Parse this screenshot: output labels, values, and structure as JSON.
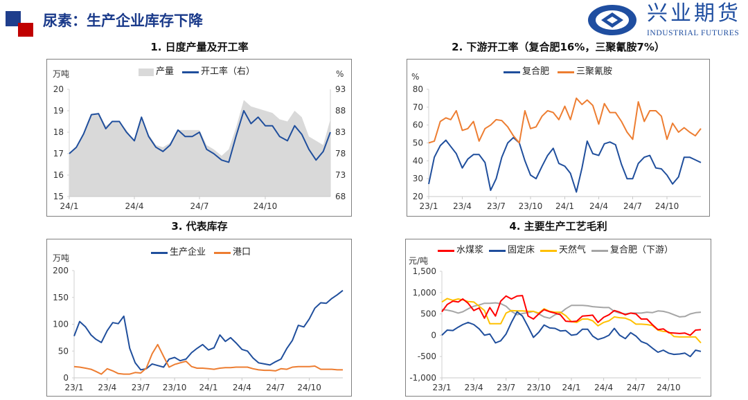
{
  "header": {
    "title": "尿素：生产企业库存下降",
    "logo_cn": "兴业期货",
    "logo_en": "INDUSTRIAL FUTURES",
    "accent_blue": "#1f3e8c",
    "accent_red": "#c00000"
  },
  "chart_data": [
    {
      "type": "line",
      "title": "1. 日度产量及开工率",
      "ylabel": "万吨",
      "y2label": "%",
      "ylim": [
        15,
        20
      ],
      "y2lim": [
        68,
        93
      ],
      "y_ticks": [
        "15",
        "16",
        "17",
        "18",
        "19",
        "20"
      ],
      "y2_ticks": [
        "68",
        "73",
        "78",
        "83",
        "88",
        "93"
      ],
      "xlim": [
        "2024-01-01",
        "2024-12-31"
      ],
      "x_ticks": [
        {
          "label": "24/1",
          "date": "2024-01-01"
        },
        {
          "label": "24/4",
          "date": "2024-04-01"
        },
        {
          "label": "24/7",
          "date": "2024-07-01"
        },
        {
          "label": "24/10",
          "date": "2024-10-01"
        }
      ],
      "legend": "top",
      "x": [
        "2024-01-01",
        "2024-01-11",
        "2024-01-21",
        "2024-02-01",
        "2024-02-11",
        "2024-02-21",
        "2024-03-01",
        "2024-03-11",
        "2024-03-21",
        "2024-04-01",
        "2024-04-11",
        "2024-04-21",
        "2024-05-01",
        "2024-05-11",
        "2024-05-21",
        "2024-06-01",
        "2024-06-11",
        "2024-06-21",
        "2024-07-01",
        "2024-07-11",
        "2024-07-21",
        "2024-08-01",
        "2024-08-11",
        "2024-08-21",
        "2024-09-01",
        "2024-09-11",
        "2024-09-21",
        "2024-10-01",
        "2024-10-11",
        "2024-10-21",
        "2024-11-01",
        "2024-11-11",
        "2024-11-21",
        "2024-12-01",
        "2024-12-11",
        "2024-12-21",
        "2024-12-31"
      ],
      "series": [
        {
          "name": "产量",
          "kind": "area",
          "axis": "left",
          "color": "#d9d9d9",
          "values": [
            17.0,
            17.3,
            17.9,
            18.8,
            18.9,
            18.3,
            18.5,
            18.5,
            18.1,
            17.6,
            18.7,
            17.9,
            17.4,
            17.3,
            17.5,
            18.1,
            18.1,
            18.1,
            18.1,
            17.4,
            17.2,
            16.9,
            17.2,
            18.2,
            19.5,
            19.2,
            19.1,
            19.0,
            18.9,
            18.6,
            18.5,
            19.0,
            18.7,
            17.8,
            17.6,
            17.4,
            18.6
          ]
        },
        {
          "name": "开工率（右）",
          "kind": "line",
          "axis": "right",
          "color": "#1f4e9c",
          "values": [
            78.0,
            79.5,
            82.6,
            87.1,
            87.3,
            83.8,
            85.5,
            85.5,
            83.0,
            81.0,
            86.5,
            82.0,
            79.5,
            78.5,
            80.0,
            83.5,
            82.0,
            82.0,
            83.0,
            79.0,
            78.0,
            76.5,
            76.0,
            82.0,
            88.0,
            85.0,
            86.5,
            84.5,
            84.5,
            82.0,
            81.0,
            84.5,
            82.5,
            79.0,
            76.5,
            78.5,
            83.0
          ]
        }
      ]
    },
    {
      "type": "line",
      "title": "2. 下游开工率（复合肥16%，三聚氰胺7%）",
      "ylabel": "%",
      "ylim": [
        20,
        80
      ],
      "y_ticks": [
        "20",
        "30",
        "40",
        "50",
        "60",
        "70",
        "80"
      ],
      "xlim": [
        "2023-01-01",
        "2024-12-31"
      ],
      "x_ticks": [
        {
          "label": "23/1",
          "date": "2023-01-01"
        },
        {
          "label": "23/4",
          "date": "2023-04-01"
        },
        {
          "label": "23/7",
          "date": "2023-07-01"
        },
        {
          "label": "23/10",
          "date": "2023-10-01"
        },
        {
          "label": "24/1",
          "date": "2024-01-01"
        },
        {
          "label": "24/4",
          "date": "2024-04-01"
        },
        {
          "label": "24/7",
          "date": "2024-07-01"
        },
        {
          "label": "24/10",
          "date": "2024-10-01"
        }
      ],
      "legend": "top",
      "x": [
        "2023-01-01",
        "2023-01-16",
        "2023-02-01",
        "2023-02-16",
        "2023-03-01",
        "2023-03-16",
        "2023-04-01",
        "2023-04-16",
        "2023-05-01",
        "2023-05-16",
        "2023-06-01",
        "2023-06-16",
        "2023-07-01",
        "2023-07-16",
        "2023-08-01",
        "2023-08-16",
        "2023-09-01",
        "2023-09-16",
        "2023-10-01",
        "2023-10-16",
        "2023-11-01",
        "2023-11-16",
        "2023-12-01",
        "2023-12-16",
        "2024-01-01",
        "2024-01-16",
        "2024-02-01",
        "2024-02-16",
        "2024-03-01",
        "2024-03-16",
        "2024-04-01",
        "2024-04-16",
        "2024-05-01",
        "2024-05-16",
        "2024-06-01",
        "2024-06-16",
        "2024-07-01",
        "2024-07-16",
        "2024-08-01",
        "2024-08-16",
        "2024-09-01",
        "2024-09-16",
        "2024-10-01",
        "2024-10-16",
        "2024-11-01",
        "2024-11-16",
        "2024-12-01",
        "2024-12-16",
        "2024-12-31"
      ],
      "series": [
        {
          "name": "复合肥",
          "color": "#1f4e9c",
          "values": [
            27,
            42,
            48.5,
            51.5,
            48,
            44,
            36,
            41,
            43.5,
            43.5,
            39,
            23.5,
            30,
            42,
            50,
            53,
            50,
            40,
            32,
            30,
            37,
            43,
            47,
            38.5,
            37,
            33,
            22.5,
            36,
            51,
            44,
            43,
            49.5,
            50.5,
            49,
            38,
            30,
            30,
            38.5,
            42,
            43,
            36,
            35.5,
            32,
            27,
            31,
            42,
            42,
            40.5,
            39
          ]
        },
        {
          "name": "三聚氰胺",
          "color": "#ed7d31",
          "values": [
            50,
            51,
            62,
            64,
            63,
            68,
            57,
            58,
            62,
            51,
            58,
            60,
            63,
            62.5,
            59,
            54,
            50,
            68,
            58,
            59,
            65,
            68,
            67,
            63,
            70.5,
            63,
            75,
            71.5,
            74,
            71,
            60.5,
            72,
            67,
            67,
            62,
            56,
            52,
            73,
            62,
            68,
            68,
            65,
            52,
            61,
            56,
            58.5,
            56,
            54,
            58
          ]
        }
      ]
    },
    {
      "type": "line",
      "title": "3. 代表库存",
      "ylabel": "万吨",
      "ylim": [
        0,
        200
      ],
      "y_ticks": [
        "0",
        "50",
        "100",
        "150",
        "200"
      ],
      "xlim": [
        "2023-01-01",
        "2024-12-31"
      ],
      "x_ticks": [
        {
          "label": "23/1",
          "date": "2023-01-01"
        },
        {
          "label": "23/4",
          "date": "2023-04-01"
        },
        {
          "label": "23/7",
          "date": "2023-07-01"
        },
        {
          "label": "23/10",
          "date": "2023-10-01"
        },
        {
          "label": "24/1",
          "date": "2024-01-01"
        },
        {
          "label": "24/4",
          "date": "2024-04-01"
        },
        {
          "label": "24/7",
          "date": "2024-07-01"
        },
        {
          "label": "24/10",
          "date": "2024-10-01"
        }
      ],
      "legend": "top",
      "x": [
        "2023-01-01",
        "2023-01-16",
        "2023-02-01",
        "2023-02-16",
        "2023-03-01",
        "2023-03-16",
        "2023-04-01",
        "2023-04-16",
        "2023-05-01",
        "2023-05-16",
        "2023-06-01",
        "2023-06-16",
        "2023-07-01",
        "2023-07-16",
        "2023-08-01",
        "2023-08-16",
        "2023-09-01",
        "2023-09-16",
        "2023-10-01",
        "2023-10-16",
        "2023-11-01",
        "2023-11-16",
        "2023-12-01",
        "2023-12-16",
        "2024-01-01",
        "2024-01-16",
        "2024-02-01",
        "2024-02-16",
        "2024-03-01",
        "2024-03-16",
        "2024-04-01",
        "2024-04-16",
        "2024-05-01",
        "2024-05-16",
        "2024-06-01",
        "2024-06-16",
        "2024-07-01",
        "2024-07-16",
        "2024-08-01",
        "2024-08-16",
        "2024-09-01",
        "2024-09-16",
        "2024-10-01",
        "2024-10-16",
        "2024-11-01",
        "2024-11-16",
        "2024-12-01",
        "2024-12-16",
        "2024-12-31"
      ],
      "series": [
        {
          "name": "生产企业",
          "color": "#1f4e9c",
          "values": [
            78,
            105,
            95,
            80,
            72,
            66,
            88,
            103,
            101,
            115,
            55,
            28,
            15,
            17,
            26,
            23,
            20,
            35,
            38,
            32,
            35,
            47,
            55,
            62,
            52,
            56,
            80,
            68,
            75,
            65,
            53,
            50,
            37,
            28,
            26,
            24,
            30,
            35,
            55,
            70,
            98,
            95,
            110,
            130,
            140,
            139,
            148,
            155,
            163
          ]
        },
        {
          "name": "港口",
          "color": "#ed7d31",
          "values": [
            21,
            20,
            18,
            16,
            12,
            7,
            17,
            13,
            8,
            7,
            7,
            10,
            9,
            18,
            45,
            62,
            40,
            20,
            25,
            28,
            31,
            21,
            18,
            18,
            17,
            16,
            18,
            19,
            19,
            20,
            20,
            20,
            17,
            15,
            14,
            14,
            13,
            17,
            16,
            20,
            21,
            21,
            21,
            22,
            16,
            16,
            16,
            15,
            15
          ]
        }
      ]
    },
    {
      "type": "line",
      "title": "4. 主要生产工艺毛利",
      "ylabel": "元/吨",
      "ylim": [
        -1000,
        1500
      ],
      "y_ticks": [
        "-1,000",
        "-500",
        "0",
        "500",
        "1,000",
        "1,500"
      ],
      "xlim": [
        "2023-01-01",
        "2024-12-31"
      ],
      "x_ticks": [
        {
          "label": "23/1",
          "date": "2023-01-01"
        },
        {
          "label": "23/4",
          "date": "2023-04-01"
        },
        {
          "label": "23/7",
          "date": "2023-07-01"
        },
        {
          "label": "23/10",
          "date": "2023-10-01"
        },
        {
          "label": "24/1",
          "date": "2024-01-01"
        },
        {
          "label": "24/4",
          "date": "2024-04-01"
        },
        {
          "label": "24/7",
          "date": "2024-07-01"
        },
        {
          "label": "24/10",
          "date": "2024-10-01"
        }
      ],
      "legend": "top",
      "x": [
        "2023-01-01",
        "2023-01-16",
        "2023-02-01",
        "2023-02-16",
        "2023-03-01",
        "2023-03-16",
        "2023-04-01",
        "2023-04-16",
        "2023-05-01",
        "2023-05-16",
        "2023-06-01",
        "2023-06-16",
        "2023-07-01",
        "2023-07-16",
        "2023-08-01",
        "2023-08-16",
        "2023-09-01",
        "2023-09-16",
        "2023-10-01",
        "2023-10-16",
        "2023-11-01",
        "2023-11-16",
        "2023-12-01",
        "2023-12-16",
        "2024-01-01",
        "2024-01-16",
        "2024-02-01",
        "2024-02-16",
        "2024-03-01",
        "2024-03-16",
        "2024-04-01",
        "2024-04-16",
        "2024-05-01",
        "2024-05-16",
        "2024-06-01",
        "2024-06-16",
        "2024-07-01",
        "2024-07-16",
        "2024-08-01",
        "2024-08-16",
        "2024-09-01",
        "2024-09-16",
        "2024-10-01",
        "2024-10-16",
        "2024-11-01",
        "2024-11-16",
        "2024-12-01",
        "2024-12-16",
        "2024-12-31"
      ],
      "series": [
        {
          "name": "复合肥（下游）",
          "color": "#a5a5a5",
          "values": [
            600,
            590,
            560,
            520,
            550,
            620,
            680,
            710,
            750,
            750,
            760,
            740,
            680,
            560,
            480,
            510,
            530,
            560,
            500,
            430,
            400,
            480,
            520,
            620,
            700,
            700,
            700,
            690,
            670,
            660,
            650,
            650,
            560,
            520,
            500,
            520,
            520,
            520,
            540,
            530,
            570,
            560,
            530,
            480,
            430,
            440,
            500,
            530,
            540
          ]
        },
        {
          "name": "天然气",
          "color": "#ffc000",
          "values": [
            780,
            860,
            820,
            850,
            830,
            790,
            780,
            680,
            580,
            270,
            270,
            270,
            520,
            580,
            570,
            570,
            560,
            560,
            520,
            620,
            560,
            540,
            540,
            460,
            320,
            300,
            380,
            380,
            340,
            220,
            300,
            340,
            430,
            410,
            400,
            350,
            260,
            260,
            250,
            230,
            120,
            90,
            80,
            -30,
            -40,
            -40,
            -40,
            -40,
            -180
          ]
        },
        {
          "name": "固定床",
          "color": "#1f4e9c",
          "values": [
            0,
            120,
            110,
            190,
            250,
            300,
            250,
            150,
            0,
            30,
            -180,
            -130,
            30,
            300,
            550,
            450,
            200,
            -50,
            70,
            240,
            170,
            160,
            100,
            110,
            0,
            20,
            140,
            140,
            -20,
            -100,
            -60,
            0,
            160,
            0,
            -80,
            60,
            -20,
            -150,
            -200,
            -300,
            -400,
            -350,
            -420,
            -450,
            -440,
            -420,
            -500,
            -350,
            -380
          ]
        },
        {
          "name": "水煤浆",
          "color": "#ff0000",
          "values": [
            550,
            720,
            800,
            780,
            850,
            750,
            580,
            640,
            400,
            650,
            450,
            800,
            920,
            850,
            920,
            930,
            450,
            380,
            500,
            600,
            550,
            520,
            480,
            330,
            320,
            330,
            450,
            460,
            470,
            300,
            420,
            480,
            580,
            540,
            480,
            520,
            500,
            380,
            380,
            250,
            130,
            150,
            60,
            50,
            40,
            50,
            0,
            120,
            130
          ]
        }
      ],
      "legend_order": [
        "水煤浆",
        "固定床",
        "天然气",
        "复合肥（下游）"
      ]
    }
  ]
}
